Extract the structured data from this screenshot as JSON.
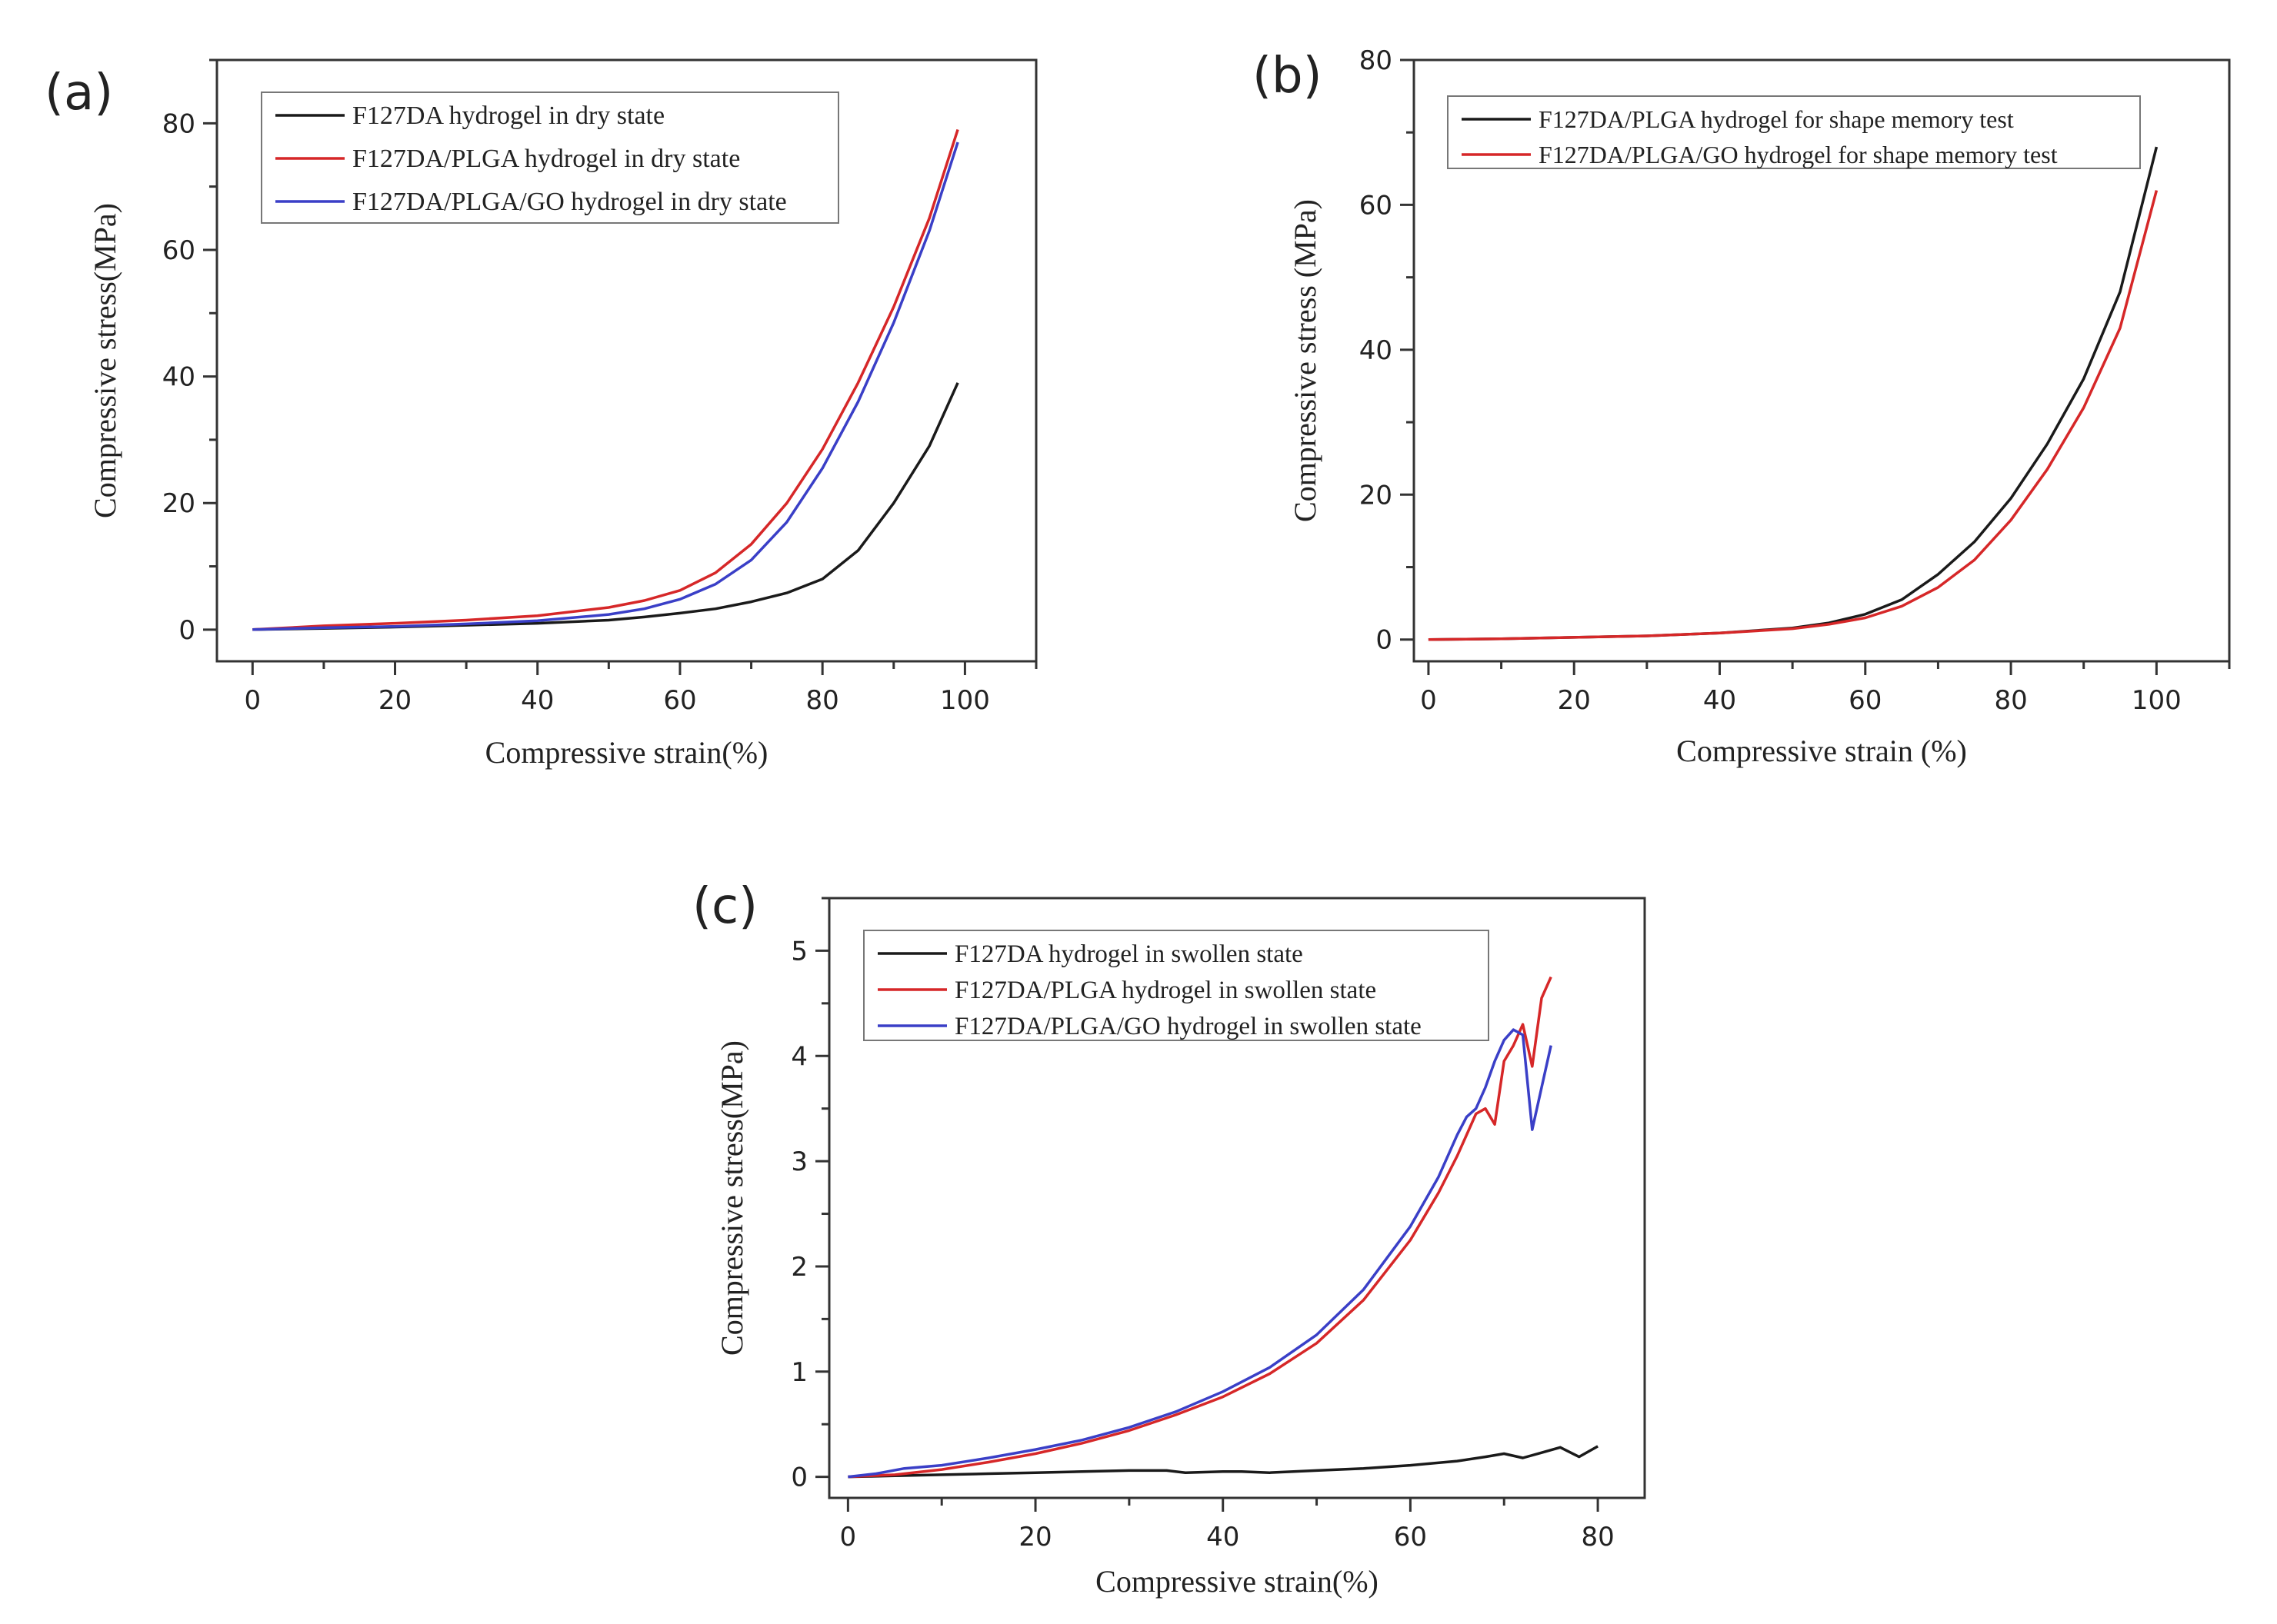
{
  "chart_data": [
    {
      "panel_label": "(a)",
      "type": "line",
      "xlabel": "Compressive strain(%)",
      "ylabel": "Compressive stress(MPa)",
      "xlim": [
        -5,
        110
      ],
      "ylim": [
        -5,
        90
      ],
      "xticks": [
        0,
        20,
        40,
        60,
        80,
        100
      ],
      "yticks": [
        0,
        20,
        40,
        60,
        80
      ],
      "grid": false,
      "legend_position": "top-left",
      "series": [
        {
          "name": "F127DA hydrogel in dry state",
          "color": "#1a1a1a",
          "x": [
            0,
            10,
            20,
            30,
            40,
            50,
            55,
            60,
            65,
            70,
            75,
            80,
            85,
            90,
            95,
            99
          ],
          "y": [
            0,
            0.2,
            0.4,
            0.7,
            1.0,
            1.5,
            2.0,
            2.6,
            3.3,
            4.4,
            5.8,
            8.0,
            12.5,
            20.0,
            29.0,
            39.0
          ]
        },
        {
          "name": "F127DA/PLGA hydrogel in dry state",
          "color": "#d62728",
          "x": [
            0,
            10,
            20,
            30,
            40,
            50,
            55,
            60,
            65,
            70,
            75,
            80,
            85,
            90,
            95,
            99
          ],
          "y": [
            0,
            0.6,
            1.0,
            1.5,
            2.2,
            3.5,
            4.6,
            6.2,
            9.0,
            13.5,
            20.0,
            28.5,
            39.0,
            51.0,
            65.0,
            79.0
          ]
        },
        {
          "name": "F127DA/PLGA/GO hydrogel in dry state",
          "color": "#3a3fc7",
          "x": [
            0,
            10,
            20,
            30,
            40,
            50,
            55,
            60,
            65,
            70,
            75,
            80,
            85,
            90,
            95,
            99
          ],
          "y": [
            0,
            0.3,
            0.5,
            0.9,
            1.4,
            2.4,
            3.3,
            4.8,
            7.2,
            11.0,
            17.0,
            25.5,
            36.0,
            48.5,
            63.0,
            77.0
          ]
        }
      ]
    },
    {
      "panel_label": "(b)",
      "type": "line",
      "xlabel": "Compressive strain (%)",
      "ylabel": "Compressive stress (MPa)",
      "xlim": [
        -2,
        110
      ],
      "ylim": [
        -3,
        80
      ],
      "xticks": [
        0,
        20,
        40,
        60,
        80,
        100
      ],
      "yticks": [
        0,
        20,
        40,
        60,
        80
      ],
      "grid": false,
      "legend_position": "top-left",
      "series": [
        {
          "name": "F127DA/PLGA hydrogel for shape memory test",
          "color": "#1a1a1a",
          "x": [
            0,
            10,
            20,
            30,
            40,
            50,
            55,
            60,
            65,
            70,
            75,
            80,
            85,
            90,
            95,
            100
          ],
          "y": [
            0,
            0.1,
            0.3,
            0.5,
            0.9,
            1.6,
            2.3,
            3.5,
            5.5,
            9.0,
            13.5,
            19.5,
            27.0,
            36.0,
            48.0,
            68.0
          ]
        },
        {
          "name": "F127DA/PLGA/GO hydrogel for shape memory test",
          "color": "#d62728",
          "x": [
            0,
            10,
            20,
            30,
            40,
            50,
            55,
            60,
            65,
            70,
            75,
            80,
            85,
            90,
            95,
            100
          ],
          "y": [
            0,
            0.1,
            0.3,
            0.5,
            0.9,
            1.5,
            2.1,
            3.0,
            4.6,
            7.2,
            11.0,
            16.5,
            23.5,
            32.0,
            43.0,
            62.0
          ]
        }
      ]
    },
    {
      "panel_label": "(c)",
      "type": "line",
      "xlabel": "Compressive strain(%)",
      "ylabel": "Compressive stress(MPa)",
      "xlim": [
        -2,
        85
      ],
      "ylim": [
        -0.2,
        5.5
      ],
      "xticks": [
        0,
        20,
        40,
        60,
        80
      ],
      "yticks": [
        0,
        1,
        2,
        3,
        4,
        5
      ],
      "grid": false,
      "legend_position": "top-left",
      "series": [
        {
          "name": "F127DA hydrogel in swollen state",
          "color": "#1a1a1a",
          "x": [
            0,
            5,
            10,
            15,
            20,
            25,
            30,
            34,
            36,
            40,
            42,
            45,
            50,
            55,
            60,
            65,
            68,
            70,
            72,
            74,
            76,
            78,
            80
          ],
          "y": [
            0,
            0.01,
            0.02,
            0.03,
            0.04,
            0.05,
            0.06,
            0.06,
            0.04,
            0.05,
            0.05,
            0.04,
            0.06,
            0.08,
            0.11,
            0.15,
            0.19,
            0.22,
            0.18,
            0.23,
            0.28,
            0.19,
            0.29
          ]
        },
        {
          "name": "F127DA/PLGA hydrogel in swollen state",
          "color": "#d62728",
          "x": [
            0,
            5,
            10,
            15,
            20,
            25,
            30,
            35,
            40,
            45,
            50,
            55,
            60,
            63,
            65,
            67,
            68,
            69,
            70,
            71,
            72,
            73,
            74,
            75
          ],
          "y": [
            0,
            0.02,
            0.07,
            0.14,
            0.22,
            0.32,
            0.44,
            0.59,
            0.76,
            0.98,
            1.27,
            1.68,
            2.25,
            2.7,
            3.05,
            3.45,
            3.5,
            3.35,
            3.95,
            4.1,
            4.3,
            3.9,
            4.55,
            4.75
          ]
        },
        {
          "name": "F127DA/PLGA/GO hydrogel in swollen state",
          "color": "#3a3fc7",
          "x": [
            0,
            3,
            6,
            10,
            15,
            20,
            25,
            30,
            35,
            40,
            45,
            50,
            55,
            60,
            63,
            65,
            66,
            67,
            68,
            69,
            70,
            71,
            72,
            73,
            74,
            75
          ],
          "y": [
            0,
            0.03,
            0.08,
            0.11,
            0.18,
            0.26,
            0.35,
            0.47,
            0.62,
            0.81,
            1.04,
            1.35,
            1.78,
            2.38,
            2.85,
            3.25,
            3.42,
            3.5,
            3.7,
            3.95,
            4.15,
            4.25,
            4.2,
            3.3,
            3.7,
            4.1
          ]
        }
      ]
    }
  ]
}
